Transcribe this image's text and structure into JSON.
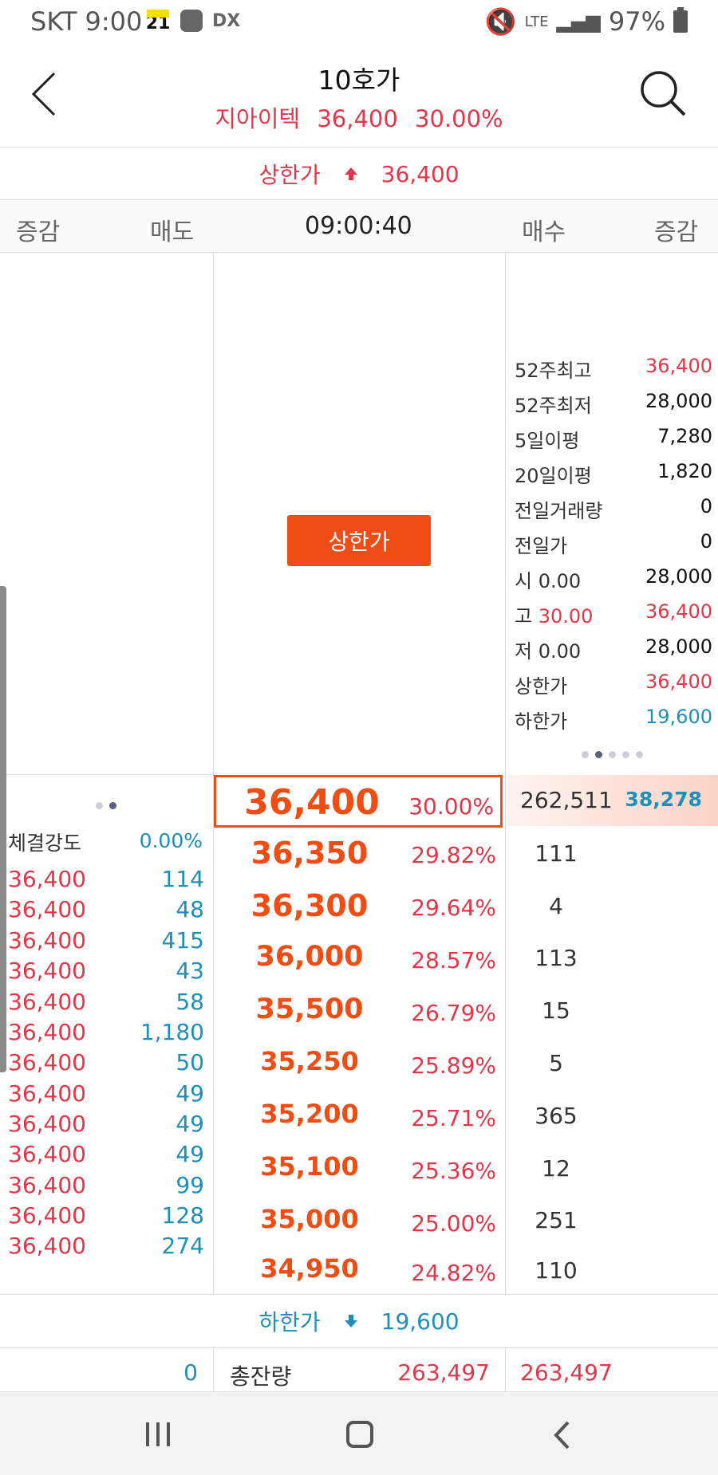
{
  "status_bar": {
    "carrier": "SKT",
    "time": "9:00",
    "calendar_label": "21",
    "dex_label": "DX",
    "network": "LTE",
    "battery": "97%"
  },
  "header": {
    "title": "10호가",
    "stock_name": "지아이텍",
    "price": "36,400",
    "change_rate": "30.00%"
  },
  "upper_limit": {
    "label": "상한가",
    "value": "36,400"
  },
  "lower_limit": {
    "label": "하한가",
    "value": "19,600"
  },
  "columns": {
    "ask_change": "증감",
    "ask": "매도",
    "time": "09:00:40",
    "bid": "매수",
    "bid_change": "증감"
  },
  "limit_button": "상한가",
  "info_panel": [
    {
      "label": "52주최고",
      "value": "36,400",
      "color": "red"
    },
    {
      "label": "52주최저",
      "value": "28,000",
      "color": "dark"
    },
    {
      "label": "5일이평",
      "value": "7,280",
      "color": "dark"
    },
    {
      "label": "20일이평",
      "value": "1,820",
      "color": "dark"
    },
    {
      "label": "전일거래량",
      "value": "0",
      "color": "dark"
    },
    {
      "label": "전일가",
      "value": "0",
      "color": "dark"
    },
    {
      "label": "시",
      "pct": "0.00",
      "pct_color": "dark",
      "value": "28,000",
      "color": "dark"
    },
    {
      "label": "고",
      "pct": "30.00",
      "pct_color": "red",
      "value": "36,400",
      "color": "red"
    },
    {
      "label": "저",
      "pct": "0.00",
      "pct_color": "dark",
      "value": "28,000",
      "color": "dark"
    },
    {
      "label": "상한가",
      "value": "36,400",
      "color": "red"
    },
    {
      "label": "하한가",
      "value": "19,600",
      "color": "blue"
    }
  ],
  "order_book": [
    {
      "price": "36,400",
      "rate": "30.00%",
      "bid_qty": "262,511",
      "bid_diff": "38,278",
      "current": true
    },
    {
      "price": "36,350",
      "rate": "29.82%",
      "bid_qty": "111"
    },
    {
      "price": "36,300",
      "rate": "29.64%",
      "bid_qty": "4"
    },
    {
      "price": "36,000",
      "rate": "28.57%",
      "bid_qty": "113"
    },
    {
      "price": "35,500",
      "rate": "26.79%",
      "bid_qty": "15"
    },
    {
      "price": "35,250",
      "rate": "25.89%",
      "bid_qty": "5"
    },
    {
      "price": "35,200",
      "rate": "25.71%",
      "bid_qty": "365"
    },
    {
      "price": "35,100",
      "rate": "25.36%",
      "bid_qty": "12"
    },
    {
      "price": "35,000",
      "rate": "25.00%",
      "bid_qty": "251"
    },
    {
      "price": "34,950",
      "rate": "24.82%",
      "bid_qty": "110"
    }
  ],
  "strength": {
    "label": "체결강도",
    "value": "0.00%"
  },
  "trades": [
    {
      "price": "36,400",
      "qty": "114"
    },
    {
      "price": "36,400",
      "qty": "48"
    },
    {
      "price": "36,400",
      "qty": "415"
    },
    {
      "price": "36,400",
      "qty": "43"
    },
    {
      "price": "36,400",
      "qty": "58"
    },
    {
      "price": "36,400",
      "qty": "1,180"
    },
    {
      "price": "36,400",
      "qty": "50"
    },
    {
      "price": "36,400",
      "qty": "49"
    },
    {
      "price": "36,400",
      "qty": "49"
    },
    {
      "price": "36,400",
      "qty": "49"
    },
    {
      "price": "36,400",
      "qty": "99"
    },
    {
      "price": "36,400",
      "qty": "128"
    },
    {
      "price": "36,400",
      "qty": "274"
    }
  ],
  "totals": {
    "ask_change": "0",
    "label": "총잔량",
    "ask_total": "263,497",
    "bid_total": "263,497"
  }
}
